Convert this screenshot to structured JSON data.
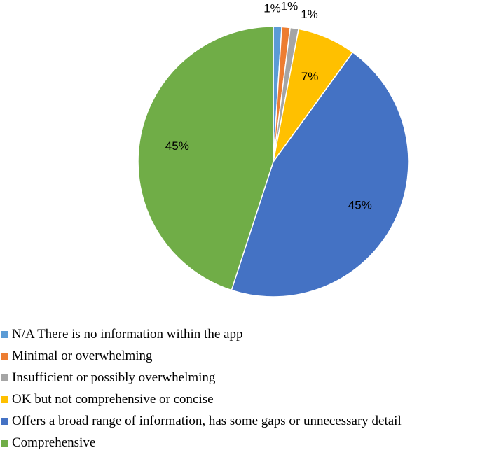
{
  "chart_data": {
    "type": "pie",
    "title": "",
    "legend_position": "bottom",
    "slices": [
      {
        "label": "N/A There is no information within the app",
        "value": 1,
        "display": "1%",
        "color": "#5b9bd5"
      },
      {
        "label": "Minimal or overwhelming",
        "value": 1,
        "display": "1%",
        "color": "#ed7d31"
      },
      {
        "label": "Insufficient or possibly overwhelming",
        "value": 1,
        "display": "1%",
        "color": "#a5a5a5"
      },
      {
        "label": "OK but not comprehensive or concise",
        "value": 7,
        "display": "7%",
        "color": "#ffc000"
      },
      {
        "label": "Offers a broad range of information, has some gaps or unnecessary detail",
        "value": 45,
        "display": "45%",
        "color": "#4472c4"
      },
      {
        "label": "Comprehensive",
        "value": 45,
        "display": "45%",
        "color": "#70ad47"
      }
    ]
  }
}
